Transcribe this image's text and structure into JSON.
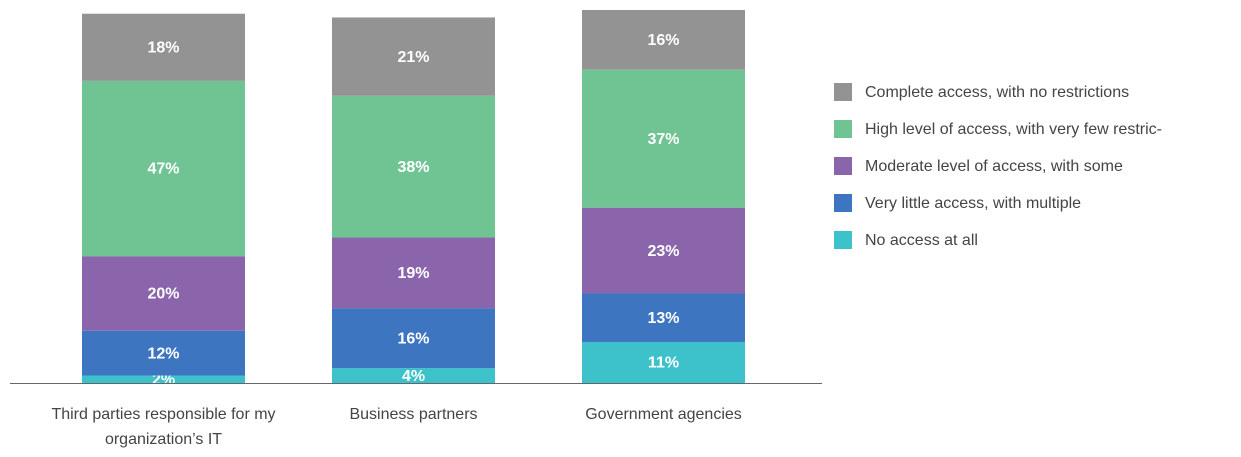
{
  "chart_data": {
    "type": "stacked_bar",
    "categories": [
      "Third parties responsible for my organization’s IT",
      "Business partners",
      "Government agencies"
    ],
    "ylim": [
      0,
      100
    ],
    "series": [
      {
        "name": "No access at all",
        "color": "#3dc2cb",
        "values": [
          2,
          4,
          11
        ],
        "value_labels": [
          "2%",
          "4%",
          "11%"
        ]
      },
      {
        "name": "Very little access, with multiple",
        "color": "#3e75c0",
        "values": [
          12,
          16,
          13
        ],
        "value_labels": [
          "12%",
          "16%",
          "13%"
        ]
      },
      {
        "name": "Moderate level of access, with some",
        "color": "#8a65ac",
        "values": [
          20,
          19,
          23
        ],
        "value_labels": [
          "20%",
          "19%",
          "23%"
        ]
      },
      {
        "name": "High level of access, with very few restric-",
        "color": "#70c493",
        "values": [
          47,
          38,
          37
        ],
        "value_labels": [
          "47%",
          "38%",
          "37%"
        ]
      },
      {
        "name": "Complete access, with no restrictions",
        "color": "#939393",
        "values": [
          18,
          21,
          16
        ],
        "value_labels": [
          "18%",
          "21%",
          "16%"
        ]
      }
    ]
  }
}
